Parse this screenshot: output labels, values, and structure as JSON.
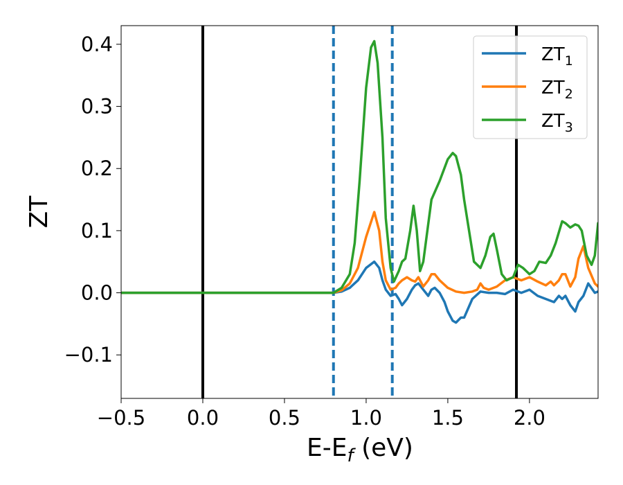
{
  "chart_data": {
    "type": "line",
    "xlabel": "E-E",
    "xlabel_sub": "f",
    "xlabel_unit": " (eV)",
    "ylabel": "ZT",
    "xlim": [
      -0.5,
      2.42
    ],
    "ylim": [
      -0.17,
      0.43
    ],
    "xticks": [
      -0.5,
      0.0,
      0.5,
      1.0,
      1.5,
      2.0
    ],
    "xtick_labels": [
      "−0.5",
      "0.0",
      "0.5",
      "1.0",
      "1.5",
      "2.0"
    ],
    "yticks": [
      -0.1,
      0.0,
      0.1,
      0.2,
      0.3,
      0.4
    ],
    "ytick_labels": [
      "−0.1",
      "0.0",
      "0.1",
      "0.2",
      "0.3",
      "0.4"
    ],
    "grid": false,
    "legend_position": "top-right",
    "vertical_lines": [
      {
        "x": 0.0,
        "style": "solid",
        "color": "#000000"
      },
      {
        "x": 1.92,
        "style": "solid",
        "color": "#000000"
      },
      {
        "x": 0.8,
        "style": "dashed",
        "color": "#1f77b4"
      },
      {
        "x": 1.16,
        "style": "dashed",
        "color": "#1f77b4"
      }
    ],
    "series": [
      {
        "name": "ZT",
        "name_sub": "1",
        "color": "#1f77b4",
        "x": [
          -0.5,
          0.0,
          0.5,
          0.8,
          0.85,
          0.9,
          0.95,
          1.0,
          1.05,
          1.08,
          1.1,
          1.12,
          1.15,
          1.18,
          1.2,
          1.22,
          1.25,
          1.28,
          1.3,
          1.32,
          1.35,
          1.38,
          1.4,
          1.42,
          1.45,
          1.48,
          1.5,
          1.53,
          1.55,
          1.58,
          1.6,
          1.65,
          1.7,
          1.75,
          1.8,
          1.85,
          1.9,
          1.95,
          2.0,
          2.05,
          2.1,
          2.15,
          2.18,
          2.2,
          2.22,
          2.25,
          2.28,
          2.3,
          2.33,
          2.36,
          2.4,
          2.42
        ],
        "y": [
          0,
          0,
          0,
          0,
          0.002,
          0.008,
          0.02,
          0.04,
          0.05,
          0.04,
          0.02,
          0.005,
          -0.005,
          -0.002,
          -0.01,
          -0.02,
          -0.01,
          0.005,
          0.012,
          0.015,
          0.005,
          -0.005,
          0.005,
          0.008,
          0.0,
          -0.015,
          -0.03,
          -0.045,
          -0.048,
          -0.04,
          -0.04,
          -0.01,
          0.002,
          0.0,
          0.0,
          -0.002,
          0.005,
          0.0,
          0.005,
          -0.005,
          -0.01,
          -0.015,
          -0.005,
          -0.01,
          -0.005,
          -0.02,
          -0.03,
          -0.015,
          -0.005,
          0.015,
          0.0,
          0.002
        ]
      },
      {
        "name": "ZT",
        "name_sub": "2",
        "color": "#ff7f0e",
        "x": [
          -0.5,
          0.0,
          0.5,
          0.8,
          0.85,
          0.9,
          0.95,
          1.0,
          1.05,
          1.08,
          1.1,
          1.12,
          1.15,
          1.18,
          1.2,
          1.22,
          1.25,
          1.28,
          1.3,
          1.32,
          1.35,
          1.38,
          1.4,
          1.42,
          1.45,
          1.5,
          1.55,
          1.6,
          1.65,
          1.68,
          1.7,
          1.72,
          1.75,
          1.8,
          1.85,
          1.9,
          1.95,
          2.0,
          2.05,
          2.1,
          2.13,
          2.15,
          2.18,
          2.2,
          2.22,
          2.25,
          2.28,
          2.3,
          2.33,
          2.36,
          2.4,
          2.42
        ],
        "y": [
          0,
          0,
          0,
          0,
          0.004,
          0.015,
          0.04,
          0.09,
          0.13,
          0.1,
          0.05,
          0.02,
          0.005,
          0.008,
          0.015,
          0.02,
          0.025,
          0.02,
          0.018,
          0.025,
          0.01,
          0.02,
          0.03,
          0.03,
          0.02,
          0.008,
          0.002,
          0.0,
          0.002,
          0.005,
          0.015,
          0.008,
          0.005,
          0.01,
          0.02,
          0.025,
          0.02,
          0.025,
          0.018,
          0.012,
          0.018,
          0.012,
          0.02,
          0.03,
          0.03,
          0.01,
          0.025,
          0.055,
          0.075,
          0.04,
          0.015,
          0.01
        ]
      },
      {
        "name": "ZT",
        "name_sub": "3",
        "color": "#2ca02c",
        "x": [
          -0.5,
          0.0,
          0.5,
          0.8,
          0.85,
          0.9,
          0.93,
          0.96,
          1.0,
          1.03,
          1.05,
          1.07,
          1.1,
          1.12,
          1.15,
          1.17,
          1.2,
          1.22,
          1.24,
          1.27,
          1.29,
          1.31,
          1.33,
          1.35,
          1.37,
          1.4,
          1.45,
          1.5,
          1.53,
          1.55,
          1.58,
          1.6,
          1.63,
          1.66,
          1.7,
          1.73,
          1.76,
          1.78,
          1.8,
          1.83,
          1.86,
          1.9,
          1.93,
          1.96,
          2.0,
          2.03,
          2.06,
          2.1,
          2.13,
          2.16,
          2.2,
          2.22,
          2.25,
          2.28,
          2.3,
          2.32,
          2.35,
          2.38,
          2.4,
          2.42
        ],
        "y": [
          0,
          0,
          0,
          0,
          0.008,
          0.03,
          0.08,
          0.18,
          0.33,
          0.395,
          0.405,
          0.37,
          0.25,
          0.12,
          0.04,
          0.018,
          0.035,
          0.05,
          0.055,
          0.1,
          0.14,
          0.1,
          0.035,
          0.05,
          0.09,
          0.15,
          0.18,
          0.215,
          0.225,
          0.22,
          0.19,
          0.15,
          0.1,
          0.05,
          0.04,
          0.06,
          0.09,
          0.095,
          0.07,
          0.03,
          0.02,
          0.025,
          0.045,
          0.04,
          0.03,
          0.035,
          0.05,
          0.048,
          0.06,
          0.08,
          0.115,
          0.112,
          0.105,
          0.11,
          0.108,
          0.1,
          0.06,
          0.045,
          0.06,
          0.112
        ]
      }
    ]
  }
}
